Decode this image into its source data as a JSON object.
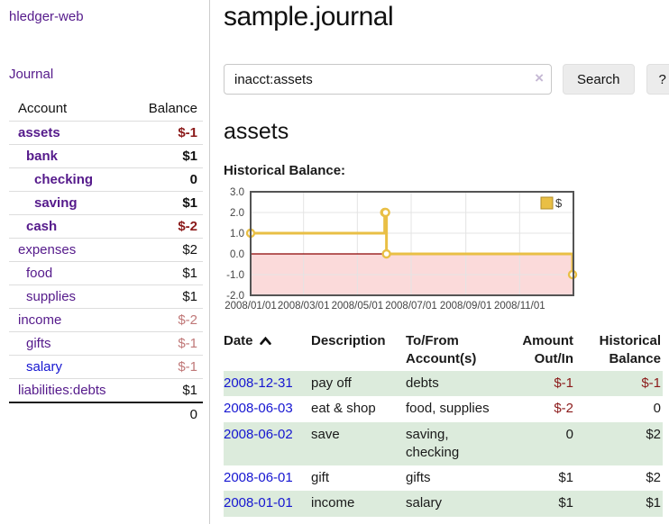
{
  "colors": {
    "accent_purple": "#551a8b",
    "link_blue": "#1616d1",
    "negative_red": "#8b1a1a",
    "faded_negative_red": "#c07878",
    "row_stripe_green": "#dcebdc"
  },
  "sidebar": {
    "brand": "hledger-web",
    "journal_label": "Journal",
    "headers": {
      "account": "Account",
      "balance": "Balance"
    },
    "accounts": [
      {
        "name": "assets",
        "balance": "$-1"
      },
      {
        "name": "bank",
        "balance": "$1"
      },
      {
        "name": "checking",
        "balance": "0"
      },
      {
        "name": "saving",
        "balance": "$1"
      },
      {
        "name": "cash",
        "balance": "$-2"
      },
      {
        "name": "expenses",
        "balance": "$2"
      },
      {
        "name": "food",
        "balance": "$1"
      },
      {
        "name": "supplies",
        "balance": "$1"
      },
      {
        "name": "income",
        "balance": "$-2"
      },
      {
        "name": "gifts",
        "balance": "$-1"
      },
      {
        "name": "salary",
        "balance": "$-1"
      },
      {
        "name": "liabilities:debts",
        "balance": "$1"
      }
    ],
    "total": "0"
  },
  "main": {
    "title": "sample.journal",
    "search": {
      "value": "inacct:assets",
      "clear_icon": "×",
      "button_label": "Search",
      "help_label": "?"
    },
    "account_heading": "assets",
    "chart_label": "Historical Balance:"
  },
  "chart_data": {
    "type": "line",
    "step": true,
    "title": "Historical Balance",
    "series": [
      {
        "name": "$",
        "color": "#e9bf45",
        "points": [
          {
            "date": "2008-01-01",
            "value": 1
          },
          {
            "date": "2008-06-01",
            "value": 2
          },
          {
            "date": "2008-06-02",
            "value": 2
          },
          {
            "date": "2008-06-03",
            "value": 0
          },
          {
            "date": "2008-12-31",
            "value": -1
          }
        ]
      }
    ],
    "x_range": [
      "2008-01-01",
      "2009-01-01"
    ],
    "x_ticks": [
      "2008/01/01",
      "2008/03/01",
      "2008/05/01",
      "2008/07/01",
      "2008/09/01",
      "2008/11/01"
    ],
    "y_ticks": [
      -2,
      -1,
      0,
      1,
      2,
      3
    ],
    "y_tick_labels": [
      "-2.0",
      "-1.0",
      "0.0",
      "1.0",
      "2.0",
      "3.0"
    ],
    "ylim": [
      -2,
      3
    ],
    "grid": true,
    "legend": {
      "label": "$",
      "position": "top-right",
      "swatch_color": "#e9bf45"
    },
    "negative_region_fill": "#fbdada",
    "zero_line_color": "#8b0000",
    "grid_color": "#e4e4e4",
    "border_color": "#545454",
    "tick_label_color": "#444444"
  },
  "register": {
    "headers": {
      "date": "Date",
      "description": "Description",
      "accounts": "To/From Account(s)",
      "amount": "Amount Out/In",
      "balance": "Historical Balance"
    },
    "rows": [
      {
        "date": "2008-12-31",
        "description": "pay off",
        "accounts": "debts",
        "amount": "$-1",
        "balance": "$-1"
      },
      {
        "date": "2008-06-03",
        "description": "eat & shop",
        "accounts": "food, supplies",
        "amount": "$-2",
        "balance": "0"
      },
      {
        "date": "2008-06-02",
        "description": "save",
        "accounts": "saving, checking",
        "amount": "0",
        "balance": "$2"
      },
      {
        "date": "2008-06-01",
        "description": "gift",
        "accounts": "gifts",
        "amount": "$1",
        "balance": "$2"
      },
      {
        "date": "2008-01-01",
        "description": "income",
        "accounts": "salary",
        "amount": "$1",
        "balance": "$1"
      }
    ]
  }
}
